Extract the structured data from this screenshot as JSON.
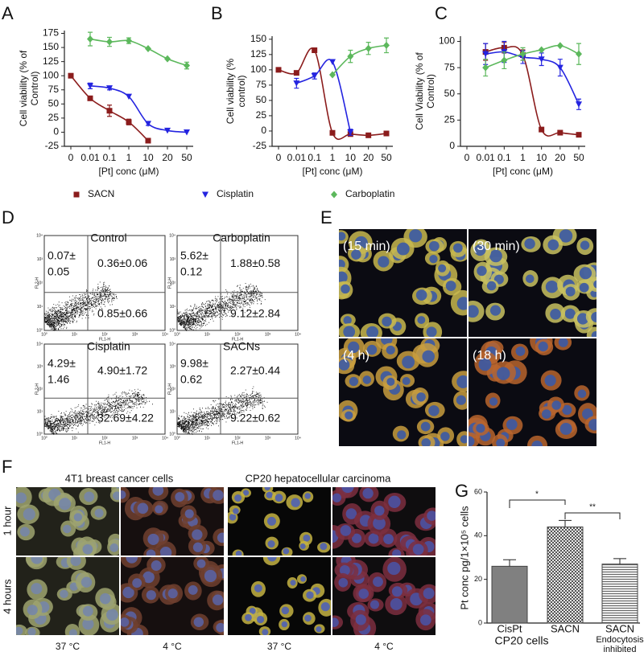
{
  "panel_labels": [
    "A",
    "B",
    "C",
    "D",
    "E",
    "F",
    "G"
  ],
  "legend": {
    "series": [
      {
        "name": "SACN",
        "color": "#8b1c1c",
        "marker": "square"
      },
      {
        "name": "Cisplatin",
        "color": "#2424e0",
        "marker": "triangle"
      },
      {
        "name": "Carboplatin",
        "color": "#5cb85c",
        "marker": "diamond"
      }
    ]
  },
  "chart_data": [
    {
      "type": "line",
      "ylabel": [
        "Cell viability (% of",
        "Control)"
      ],
      "xlabel": "[Pt] conc (μM)",
      "categories": [
        "0",
        "0.01",
        "0.1",
        "1",
        "10",
        "20",
        "50"
      ],
      "ylim": [
        -25,
        180
      ],
      "yticks": [
        -25,
        0,
        25,
        50,
        75,
        100,
        125,
        150,
        175
      ],
      "series": [
        {
          "values": [
            100,
            60,
            38,
            18,
            -15,
            null,
            null
          ],
          "errors": [
            null,
            null,
            10,
            5,
            null,
            null,
            null
          ]
        },
        {
          "values": [
            null,
            82,
            78,
            63,
            15,
            3,
            0
          ],
          "errors": [
            null,
            5,
            3,
            null,
            3,
            null,
            null
          ]
        },
        {
          "values": [
            null,
            165,
            160,
            162,
            148,
            130,
            118
          ],
          "errors": [
            null,
            12,
            8,
            5,
            null,
            null,
            6
          ]
        }
      ]
    },
    {
      "type": "line",
      "ylabel": [
        "Cell viability (%",
        "control)"
      ],
      "xlabel": "[Pt] conc (μM)",
      "categories": [
        "0",
        "0.01",
        "0.1",
        "1",
        "10",
        "20",
        "50"
      ],
      "ylim": [
        -25,
        155
      ],
      "yticks": [
        -25,
        0,
        25,
        50,
        75,
        100,
        125,
        150
      ],
      "series": [
        {
          "values": [
            100,
            95,
            132,
            -3,
            -5,
            -7,
            -4
          ],
          "errors": [
            null,
            null,
            null,
            null,
            null,
            null,
            null
          ]
        },
        {
          "values": [
            null,
            78,
            90,
            113,
            -2,
            null,
            null
          ],
          "errors": [
            null,
            8,
            5,
            null,
            5,
            null,
            null
          ]
        },
        {
          "values": [
            null,
            null,
            null,
            92,
            122,
            135,
            140
          ],
          "errors": [
            null,
            null,
            null,
            null,
            10,
            10,
            12
          ]
        }
      ]
    },
    {
      "type": "line",
      "ylabel": [
        "Cell Viability (% of",
        "Control)"
      ],
      "xlabel": "[Pt] conc (μM)",
      "categories": [
        "0",
        "0.01",
        "0.1",
        "1",
        "10",
        "20",
        "50"
      ],
      "ylim": [
        0,
        105
      ],
      "yticks": [
        0,
        25,
        50,
        75,
        100
      ],
      "series": [
        {
          "values": [
            null,
            90,
            94,
            87,
            16,
            13,
            11
          ],
          "errors": [
            null,
            8,
            5,
            5,
            null,
            null,
            null
          ]
        },
        {
          "values": [
            null,
            88,
            90,
            85,
            83,
            75,
            40
          ],
          "errors": [
            null,
            10,
            10,
            6,
            6,
            8,
            5
          ]
        },
        {
          "values": [
            null,
            75,
            82,
            88,
            92,
            96,
            88
          ],
          "errors": [
            null,
            8,
            8,
            6,
            null,
            null,
            10
          ]
        }
      ]
    },
    {
      "type": "bar",
      "ylabel": "Pt conc pg/1×10⁵ cells",
      "xlabel": "CP20 cells",
      "note": [
        "Endocytosis",
        "inhibited"
      ],
      "categories": [
        "CisPt",
        "SACN",
        "SACN"
      ],
      "values": [
        26,
        44,
        27
      ],
      "errors": [
        3,
        3,
        2.5
      ],
      "color": "#808080",
      "fills": [
        "solid",
        "checkered",
        "striped"
      ],
      "ylim": [
        0,
        60
      ],
      "yticks": [
        0,
        20,
        40,
        60
      ],
      "significance": [
        "*",
        "**"
      ]
    }
  ],
  "flow": {
    "xlabel": "FL1-H",
    "ylabel": "FL2-H",
    "ticks": [
      "10⁰",
      "10¹",
      "10²",
      "10³",
      "10⁴"
    ],
    "plots": [
      {
        "title": "Control",
        "upper_left": [
          "0.07±",
          "0.05"
        ],
        "upper_right": "0.36±0.06",
        "lower_right": "0.85±0.66"
      },
      {
        "title": "Carboplatin",
        "upper_left": [
          "5.62±",
          "0.12"
        ],
        "upper_right": "1.88±0.58",
        "lower_right": "9.12±2.84"
      },
      {
        "title": "Cisplatin",
        "upper_left": [
          "4.29±",
          "1.46"
        ],
        "upper_right": "4.90±1.72",
        "lower_right": "32.69±4.22"
      },
      {
        "title": "SACNs",
        "upper_left": [
          "9.98±",
          "0.62"
        ],
        "upper_right": "2.27±0.44",
        "lower_right": "9.22±0.62"
      }
    ]
  },
  "timecourse": {
    "labels": [
      "(15 min)",
      "(30 min)",
      "(4 h)",
      "(18 h)"
    ]
  },
  "uptake": {
    "groups": [
      "4T1 breast cancer cells",
      "CP20 hepatocellular carcinoma"
    ],
    "rows": [
      "1 hour",
      "4 hours"
    ],
    "temperatures": [
      "37 °C",
      "4 °C",
      "37 °C",
      "4 °C"
    ]
  }
}
